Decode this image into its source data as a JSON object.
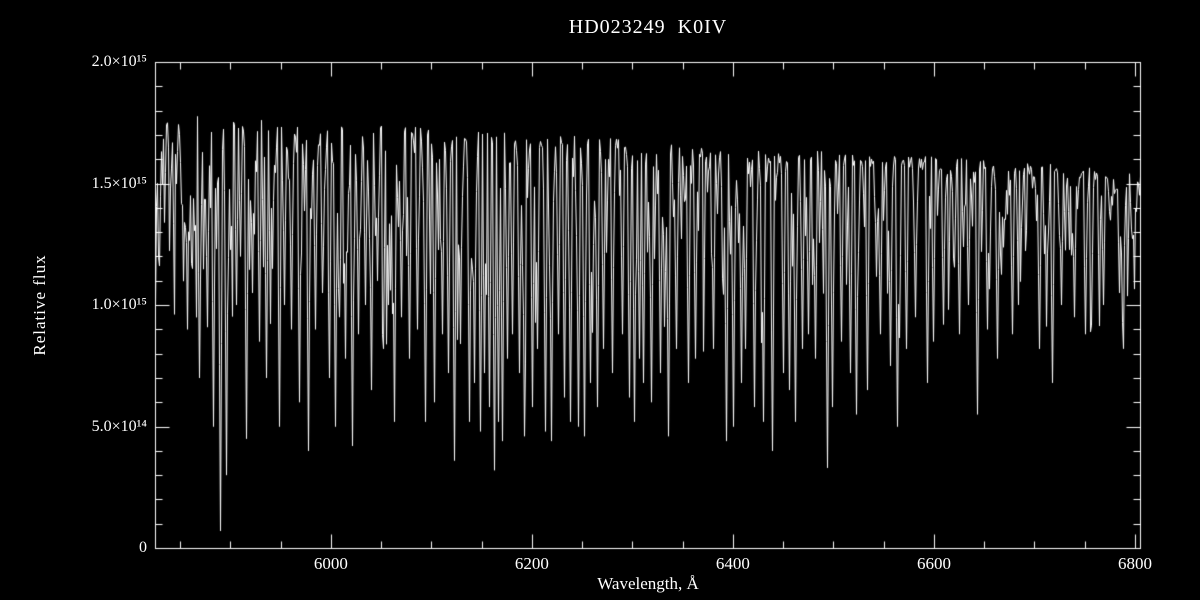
{
  "figure": {
    "background_color": "#000000",
    "foreground_color": "#ffffff"
  },
  "chart_data": {
    "type": "line",
    "title": "HD023249  K0IV",
    "xlabel": "Wavelength, Å",
    "ylabel": "Relative flux",
    "xlim": [
      5825,
      6805
    ],
    "ylim": [
      0,
      2.0
    ],
    "y_unit": "1e15",
    "grid": false,
    "x_ticks": [
      {
        "value": 6000,
        "label": "6000"
      },
      {
        "value": 6200,
        "label": "6200"
      },
      {
        "value": 6400,
        "label": "6400"
      },
      {
        "value": 6600,
        "label": "6600"
      },
      {
        "value": 6800,
        "label": "6800"
      }
    ],
    "x_minor_tick_step": 50,
    "y_ticks": [
      {
        "value": 0.0,
        "label": "0"
      },
      {
        "value": 0.5,
        "label": "5.0×10¹⁴"
      },
      {
        "value": 1.0,
        "label": "1.0×10¹⁵"
      },
      {
        "value": 1.5,
        "label": "1.5×10¹⁵"
      },
      {
        "value": 2.0,
        "label": "2.0×10¹⁵"
      }
    ],
    "y_minor_tick_step": 0.1,
    "continuum": [
      [
        5825,
        1.8
      ],
      [
        5900,
        1.78
      ],
      [
        6000,
        1.76
      ],
      [
        6100,
        1.73
      ],
      [
        6200,
        1.71
      ],
      [
        6300,
        1.68
      ],
      [
        6400,
        1.65
      ],
      [
        6500,
        1.63
      ],
      [
        6600,
        1.61
      ],
      [
        6700,
        1.585
      ],
      [
        6800,
        1.56
      ]
    ],
    "absorption_lines": [
      [
        5857,
        0.9
      ],
      [
        5862,
        1.15
      ],
      [
        5869,
        0.7
      ],
      [
        5876,
        1.2
      ],
      [
        5883,
        0.5
      ],
      [
        5890,
        0.07
      ],
      [
        5896,
        0.3
      ],
      [
        5906,
        1.0
      ],
      [
        5910,
        1.2
      ],
      [
        5916,
        0.45
      ],
      [
        5922,
        1.05
      ],
      [
        5928,
        0.85
      ],
      [
        5935,
        0.7
      ],
      [
        5941,
        1.15
      ],
      [
        5948,
        0.5
      ],
      [
        5953,
        1.0
      ],
      [
        5960,
        0.9
      ],
      [
        5968,
        0.6
      ],
      [
        5977,
        0.4
      ],
      [
        5984,
        0.9
      ],
      [
        5991,
        1.05
      ],
      [
        5998,
        0.7
      ],
      [
        6004,
        0.5
      ],
      [
        6008,
        0.95
      ],
      [
        6014,
        0.78
      ],
      [
        6021,
        0.42
      ],
      [
        6027,
        0.88
      ],
      [
        6034,
        1.0
      ],
      [
        6040,
        0.65
      ],
      [
        6046,
        1.1
      ],
      [
        6052,
        0.82
      ],
      [
        6057,
        1.0
      ],
      [
        6063,
        0.52
      ],
      [
        6070,
        0.95
      ],
      [
        6078,
        0.78
      ],
      [
        6086,
        0.9
      ],
      [
        6094,
        0.52
      ],
      [
        6103,
        0.6
      ],
      [
        6111,
        0.88
      ],
      [
        6117,
        0.72
      ],
      [
        6122,
        0.36
      ],
      [
        6128,
        0.84
      ],
      [
        6137,
        0.52
      ],
      [
        6142,
        0.68
      ],
      [
        6148,
        0.48
      ],
      [
        6152,
        0.72
      ],
      [
        6157,
        0.58
      ],
      [
        6162,
        0.32
      ],
      [
        6166,
        0.52
      ],
      [
        6170,
        0.44
      ],
      [
        6175,
        0.78
      ],
      [
        6180,
        0.88
      ],
      [
        6187,
        0.72
      ],
      [
        6192,
        0.46
      ],
      [
        6200,
        0.58
      ],
      [
        6205,
        0.82
      ],
      [
        6213,
        0.48
      ],
      [
        6219,
        0.44
      ],
      [
        6226,
        0.88
      ],
      [
        6232,
        0.62
      ],
      [
        6238,
        0.52
      ],
      [
        6246,
        0.5
      ],
      [
        6252,
        0.46
      ],
      [
        6258,
        0.68
      ],
      [
        6265,
        0.58
      ],
      [
        6271,
        0.82
      ],
      [
        6280,
        0.72
      ],
      [
        6290,
        0.88
      ],
      [
        6297,
        0.62
      ],
      [
        6302,
        0.52
      ],
      [
        6307,
        0.78
      ],
      [
        6311,
        0.68
      ],
      [
        6318,
        0.6
      ],
      [
        6327,
        0.72
      ],
      [
        6335,
        0.46
      ],
      [
        6343,
        0.82
      ],
      [
        6355,
        0.68
      ],
      [
        6362,
        0.78
      ],
      [
        6380,
        0.82
      ],
      [
        6393,
        0.44
      ],
      [
        6400,
        0.5
      ],
      [
        6408,
        0.68
      ],
      [
        6412,
        0.82
      ],
      [
        6421,
        0.58
      ],
      [
        6430,
        0.52
      ],
      [
        6439,
        0.4
      ],
      [
        6450,
        0.72
      ],
      [
        6456,
        0.65
      ],
      [
        6462,
        0.52
      ],
      [
        6469,
        0.82
      ],
      [
        6475,
        0.88
      ],
      [
        6482,
        0.78
      ],
      [
        6494,
        0.33
      ],
      [
        6499,
        0.58
      ],
      [
        6508,
        0.85
      ],
      [
        6516,
        0.72
      ],
      [
        6522,
        0.55
      ],
      [
        6533,
        0.65
      ],
      [
        6546,
        0.88
      ],
      [
        6556,
        0.75
      ],
      [
        6563,
        0.5
      ],
      [
        6572,
        0.82
      ],
      [
        6581,
        0.95
      ],
      [
        6593,
        0.68
      ],
      [
        6599,
        0.85
      ],
      [
        6609,
        0.92
      ],
      [
        6625,
        0.88
      ],
      [
        6634,
        1.0
      ],
      [
        6643,
        0.55
      ],
      [
        6653,
        0.9
      ],
      [
        6663,
        0.78
      ],
      [
        6678,
        0.88
      ],
      [
        6705,
        0.82
      ],
      [
        6717,
        0.68
      ],
      [
        6726,
        1.0
      ],
      [
        6739,
        0.95
      ],
      [
        6750,
        0.88
      ],
      [
        6768,
        1.0
      ],
      [
        6784,
        1.05
      ]
    ],
    "microlines": {
      "count": 560,
      "max_depth": 0.52,
      "blue_bias": 1.35
    },
    "noise_seed": 42,
    "noise_amp": 0.035
  }
}
